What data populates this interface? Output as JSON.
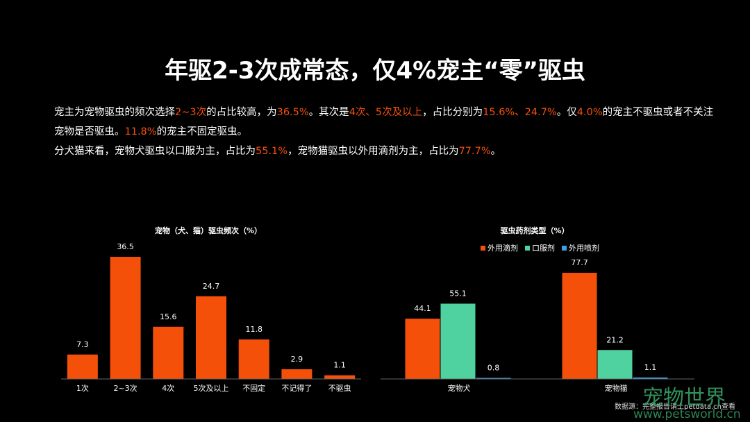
{
  "header": {
    "title": "年驱2-3次成常态，仅4%宠主“零”驱虫"
  },
  "paragraphs": [
    [
      {
        "text": "宠主为宠物驱虫的频次选择",
        "accent": false
      },
      {
        "text": "2~3次",
        "accent": true
      },
      {
        "text": "的占比较高，为",
        "accent": false
      },
      {
        "text": "36.5%",
        "accent": true
      },
      {
        "text": "。其次是",
        "accent": false
      },
      {
        "text": "4次、5次及以上",
        "accent": true
      },
      {
        "text": "，占比分别为",
        "accent": false
      },
      {
        "text": "15.6%、24.7%",
        "accent": true
      },
      {
        "text": "。仅",
        "accent": false
      },
      {
        "text": "4.0%",
        "accent": true
      },
      {
        "text": "的宠主不驱虫或者不关注宠物是否驱虫。",
        "accent": false
      },
      {
        "text": "11.8%",
        "accent": true
      },
      {
        "text": "的宠主不固定驱虫。",
        "accent": false
      }
    ],
    [
      {
        "text": "分犬猫来看，宠物犬驱虫以口服为主，占比为",
        "accent": false
      },
      {
        "text": "55.1%",
        "accent": true
      },
      {
        "text": "，宠物猫驱虫以外用滴剂为主，占比为",
        "accent": false
      },
      {
        "text": "77.7%",
        "accent": true
      },
      {
        "text": "。",
        "accent": false
      }
    ]
  ],
  "chart_data": [
    {
      "type": "bar",
      "title": "宠物（犬、猫）驱虫频次（%）",
      "categories": [
        "1次",
        "2~3次",
        "4次",
        "5次及以上",
        "不固定",
        "不记得了",
        "不驱虫"
      ],
      "values": [
        7.3,
        36.5,
        15.6,
        24.7,
        11.8,
        2.9,
        1.1
      ],
      "color": "#f5500a"
    },
    {
      "type": "grouped-bar",
      "title": "驱虫药剂类型（%）",
      "categories": [
        "宠物犬",
        "宠物猫"
      ],
      "series": [
        {
          "name": "外用滴剂",
          "color": "#f5500a",
          "values": [
            44.1,
            77.7
          ]
        },
        {
          "name": "口服剂",
          "color": "#4fd1a0",
          "values": [
            55.1,
            21.2
          ]
        },
        {
          "name": "外用喷剂",
          "color": "#3ea0e0",
          "values": [
            0.8,
            1.1
          ]
        }
      ]
    }
  ],
  "footer": {
    "source": "数据源：完整报告请上petdata.cn查看",
    "watermark": "宠物世界",
    "watermark_url": "www.petsworld.cn"
  }
}
